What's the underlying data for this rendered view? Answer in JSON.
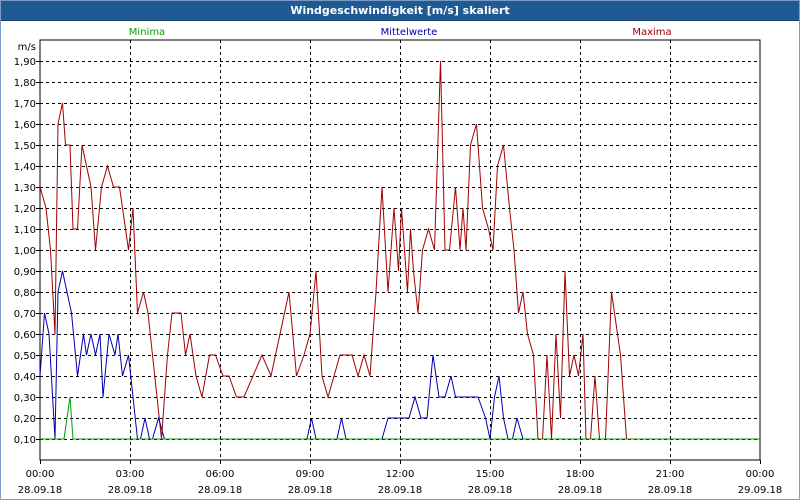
{
  "title": "Windgeschwindigkeit [m/s] skaliert",
  "chart_data": {
    "type": "line",
    "title": "Windgeschwindigkeit [m/s] skaliert",
    "ylabel": "m/s",
    "ylim": [
      0,
      2.0
    ],
    "xlim": [
      "28.09.18 00:00",
      "29.09.18 00:00"
    ],
    "grid": true,
    "y_ticks": [
      "0,10",
      "0,20",
      "0,30",
      "0,40",
      "0,50",
      "0,60",
      "0,70",
      "0,80",
      "0,90",
      "1,00",
      "1,10",
      "1,20",
      "1,30",
      "1,40",
      "1,50",
      "1,60",
      "1,70",
      "1,80",
      "1,90"
    ],
    "x_ticks": [
      {
        "time": "00:00",
        "date": "28.09.18"
      },
      {
        "time": "03:00",
        "date": "28.09.18"
      },
      {
        "time": "06:00",
        "date": "28.09.18"
      },
      {
        "time": "09:00",
        "date": "28.09.18"
      },
      {
        "time": "12:00",
        "date": "28.09.18"
      },
      {
        "time": "15:00",
        "date": "28.09.18"
      },
      {
        "time": "18:00",
        "date": "28.09.18"
      },
      {
        "time": "21:00",
        "date": "28.09.18"
      },
      {
        "time": "00:00",
        "date": "29.09.18"
      }
    ],
    "legend_placement": "top",
    "series": [
      {
        "name": "Minima",
        "color": "#00a000",
        "x": [
          0,
          0.8,
          0.9,
          1.0,
          1.1,
          24
        ],
        "y": [
          0.1,
          0.1,
          0.2,
          0.3,
          0.1,
          0.1
        ]
      },
      {
        "name": "Mittelwerte",
        "color": "#0000b0",
        "x": [
          0,
          0.15,
          0.3,
          0.5,
          0.6,
          0.75,
          0.9,
          1.05,
          1.25,
          1.45,
          1.55,
          1.7,
          1.85,
          2.0,
          2.1,
          2.3,
          2.5,
          2.6,
          2.75,
          2.95,
          3.1,
          3.25,
          3.35,
          3.5,
          3.65,
          3.75,
          3.95,
          4.15,
          4.35,
          4.5,
          4.6,
          4.75,
          4.9,
          5.1,
          8.9,
          9.05,
          9.2,
          9.3,
          9.9,
          10.05,
          10.2,
          11.4,
          11.6,
          12.3,
          12.5,
          12.7,
          12.9,
          13.1,
          13.3,
          13.5,
          13.7,
          13.85,
          14.15,
          14.4,
          14.6,
          14.85,
          15.0,
          15.15,
          15.3,
          15.45,
          15.6,
          15.75,
          15.9,
          16.1,
          24
        ],
        "y": [
          0.4,
          0.7,
          0.6,
          0.1,
          0.8,
          0.9,
          0.8,
          0.7,
          0.4,
          0.6,
          0.5,
          0.6,
          0.5,
          0.6,
          0.3,
          0.6,
          0.5,
          0.6,
          0.4,
          0.5,
          0.3,
          0.1,
          0.1,
          0.2,
          0.1,
          0.1,
          0.2,
          0.1,
          0.1,
          0.1,
          0.1,
          0.1,
          0.1,
          0.1,
          0.1,
          0.2,
          0.1,
          0.1,
          0.1,
          0.2,
          0.1,
          0.1,
          0.2,
          0.2,
          0.3,
          0.2,
          0.2,
          0.5,
          0.3,
          0.3,
          0.4,
          0.3,
          0.3,
          0.3,
          0.3,
          0.2,
          0.1,
          0.3,
          0.4,
          0.2,
          0.1,
          0.1,
          0.2,
          0.1,
          0.1
        ]
      },
      {
        "name": "Maxima",
        "color": "#a00000",
        "x": [
          0,
          0.2,
          0.35,
          0.5,
          0.6,
          0.75,
          0.85,
          1.0,
          1.1,
          1.25,
          1.4,
          1.55,
          1.7,
          1.85,
          2.05,
          2.25,
          2.45,
          2.65,
          2.85,
          2.95,
          3.1,
          3.25,
          3.45,
          3.6,
          3.75,
          3.9,
          4.05,
          4.25,
          4.4,
          4.55,
          4.7,
          4.85,
          5.0,
          5.2,
          5.4,
          5.65,
          5.85,
          6.1,
          6.3,
          6.55,
          6.8,
          7.1,
          7.4,
          7.7,
          8.0,
          8.3,
          8.55,
          8.8,
          9.0,
          9.2,
          9.4,
          9.6,
          9.8,
          10.0,
          10.2,
          10.4,
          10.6,
          10.8,
          11.0,
          11.2,
          11.4,
          11.6,
          11.8,
          11.95,
          12.05,
          12.15,
          12.25,
          12.35,
          12.45,
          12.6,
          12.75,
          12.95,
          13.15,
          13.35,
          13.5,
          13.65,
          13.85,
          14.0,
          14.1,
          14.2,
          14.35,
          14.55,
          14.75,
          14.95,
          15.1,
          15.25,
          15.45,
          15.65,
          15.8,
          15.95,
          16.1,
          16.25,
          16.45,
          16.6,
          16.75,
          16.9,
          17.05,
          17.2,
          17.35,
          17.5,
          17.65,
          17.8,
          17.95,
          18.1,
          18.2,
          18.35,
          18.5,
          18.65,
          18.85,
          19.05,
          19.35,
          19.55,
          19.75,
          19.95,
          20.1,
          20.25,
          20.45,
          20.65,
          24
        ],
        "y": [
          1.3,
          1.2,
          1.0,
          0.6,
          1.6,
          1.7,
          1.5,
          1.5,
          1.1,
          1.1,
          1.5,
          1.4,
          1.3,
          1.0,
          1.3,
          1.4,
          1.3,
          1.3,
          1.1,
          1.0,
          1.2,
          0.7,
          0.8,
          0.7,
          0.5,
          0.3,
          0.1,
          0.5,
          0.7,
          0.7,
          0.7,
          0.5,
          0.6,
          0.4,
          0.3,
          0.5,
          0.5,
          0.4,
          0.4,
          0.3,
          0.3,
          0.4,
          0.5,
          0.4,
          0.6,
          0.8,
          0.4,
          0.5,
          0.6,
          0.9,
          0.4,
          0.3,
          0.4,
          0.5,
          0.5,
          0.5,
          0.4,
          0.5,
          0.4,
          0.8,
          1.3,
          0.8,
          1.2,
          0.9,
          1.2,
          1.0,
          0.8,
          1.1,
          0.9,
          0.7,
          1.0,
          1.1,
          1.0,
          1.9,
          1.0,
          1.0,
          1.3,
          1.0,
          1.2,
          1.0,
          1.5,
          1.6,
          1.2,
          1.1,
          1.0,
          1.4,
          1.5,
          1.2,
          1.0,
          0.7,
          0.8,
          0.6,
          0.5,
          0.1,
          0.1,
          0.5,
          0.1,
          0.6,
          0.2,
          0.9,
          0.4,
          0.5,
          0.4,
          0.6,
          0.1,
          0.1,
          0.4,
          0.1,
          0.1,
          0.8,
          0.5,
          0.1,
          0.1,
          0.1,
          0.1,
          0.1,
          0.1,
          0.1,
          0.1
        ]
      }
    ]
  }
}
